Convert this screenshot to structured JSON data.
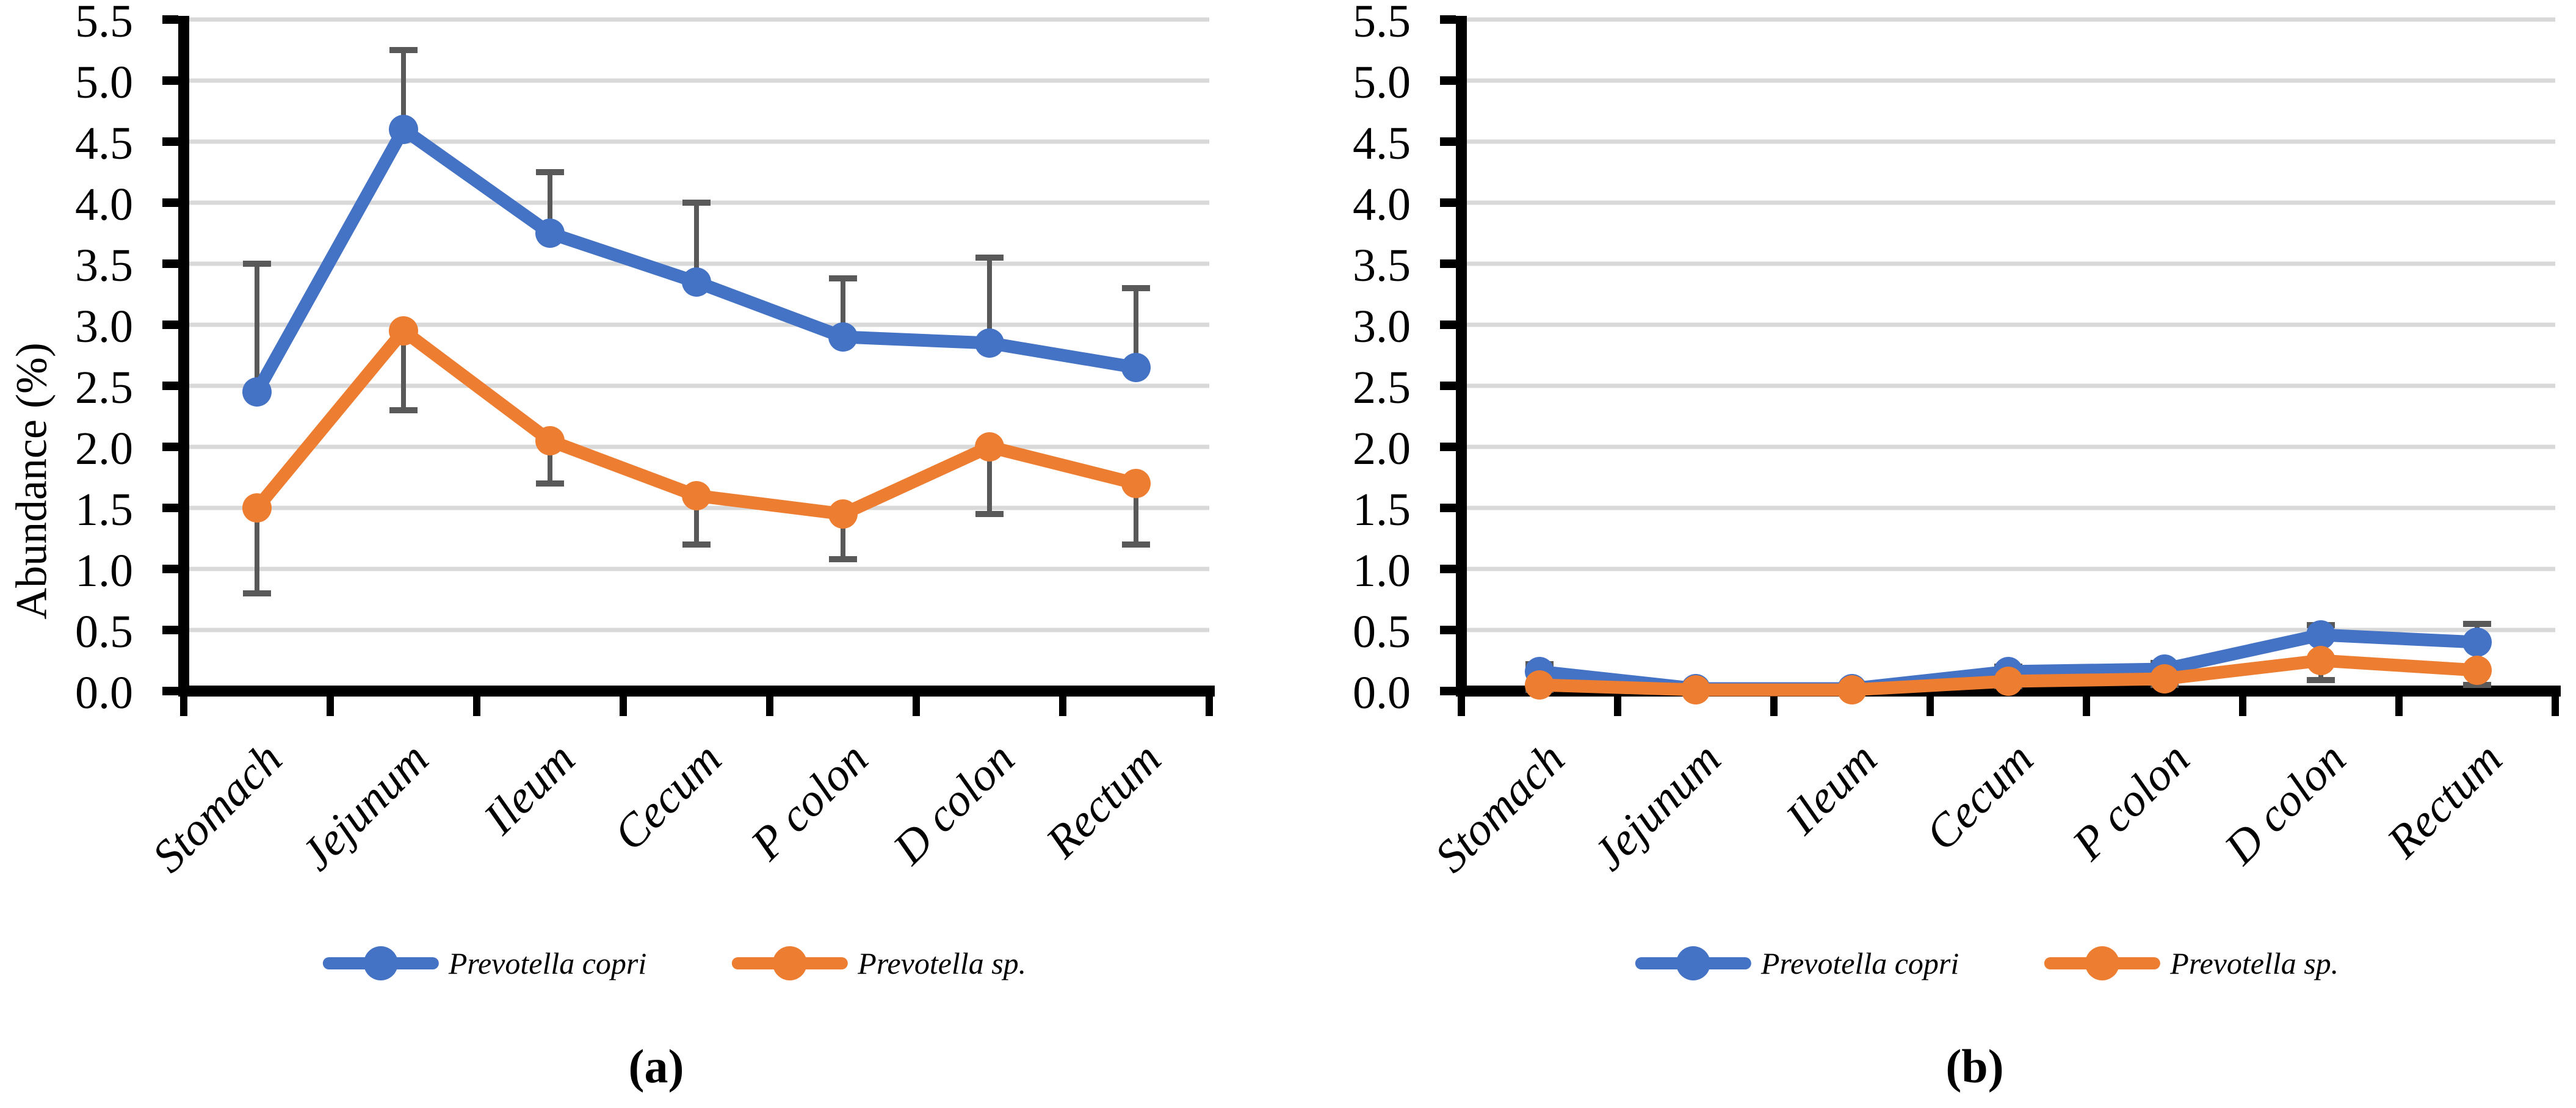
{
  "figure": {
    "background": "#FFFFFF",
    "axis_color": "#000000",
    "gridline_color": "#D9D9D9",
    "error_bar_color": "#595959"
  },
  "chart_data": [
    {
      "type": "line",
      "caption": "(a)",
      "ylabel": "Abundance (%)",
      "categories": [
        "Stomach",
        "Jejunum",
        "Ileum",
        "Cecum",
        "P colon",
        "D colon",
        "Rectum"
      ],
      "yticks": [
        "0.0",
        "0.5",
        "1.0",
        "1.5",
        "2.0",
        "2.5",
        "3.0",
        "3.5",
        "4.0",
        "4.5",
        "5.0",
        "5.5"
      ],
      "ylim": [
        0,
        5.5
      ],
      "ytick_step": 0.5,
      "grid": true,
      "legend_position": "bottom",
      "xlabel_rotation": 45,
      "series": [
        {
          "name": "Prevotella copri",
          "color": "#4472C4",
          "values": [
            2.45,
            4.6,
            3.75,
            3.35,
            2.9,
            2.85,
            2.65
          ],
          "error_up": [
            1.05,
            0.65,
            0.5,
            0.65,
            0.48,
            0.7,
            0.65
          ],
          "error_down": [
            0,
            0,
            0,
            0,
            0,
            0,
            0
          ]
        },
        {
          "name": "Prevotella sp.",
          "color": "#ED7D31",
          "values": [
            1.5,
            2.95,
            2.05,
            1.6,
            1.45,
            2.0,
            1.7
          ],
          "error_up": [
            0,
            0,
            0,
            0,
            0,
            0,
            0
          ],
          "error_down": [
            0.7,
            0.65,
            0.35,
            0.4,
            0.37,
            0.55,
            0.5
          ]
        }
      ]
    },
    {
      "type": "line",
      "caption": "(b)",
      "ylabel": "",
      "categories": [
        "Stomach",
        "Jejunum",
        "Ileum",
        "Cecum",
        "P colon",
        "D colon",
        "Rectum"
      ],
      "yticks": [
        "0.0",
        "0.5",
        "1.0",
        "1.5",
        "2.0",
        "2.5",
        "3.0",
        "3.5",
        "4.0",
        "4.5",
        "5.0",
        "5.5"
      ],
      "ylim": [
        0,
        5.5
      ],
      "ytick_step": 0.5,
      "grid": true,
      "legend_position": "bottom",
      "xlabel_rotation": 45,
      "series": [
        {
          "name": "Prevotella copri",
          "color": "#4472C4",
          "values": [
            0.16,
            0.02,
            0.02,
            0.16,
            0.18,
            0.46,
            0.4
          ],
          "error_up": [
            0.06,
            0.01,
            0.01,
            0.04,
            0.05,
            0.08,
            0.15
          ],
          "error_down": [
            0,
            0,
            0,
            0,
            0,
            0,
            0
          ]
        },
        {
          "name": "Prevotella sp.",
          "color": "#ED7D31",
          "values": [
            0.05,
            0.01,
            0.01,
            0.08,
            0.1,
            0.25,
            0.17
          ],
          "error_up": [
            0,
            0,
            0,
            0,
            0,
            0,
            0
          ],
          "error_down": [
            0.04,
            0.01,
            0.01,
            0.04,
            0.05,
            0.16,
            0.12
          ]
        }
      ]
    }
  ]
}
